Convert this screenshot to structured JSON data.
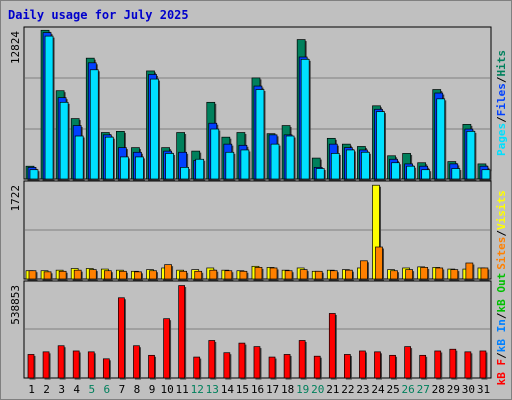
{
  "title": "Daily usage for July 2025",
  "colors": {
    "hits": "#00805c",
    "files": "#0040ff",
    "pages": "#00e0ff",
    "visits": "#ffff00",
    "sites": "#ff8000",
    "kbf": "#ff0000",
    "kbin": "#0080ff",
    "kbout": "#00c000",
    "weekend_day": "#00805c",
    "weekday": "#000000",
    "panel": "#c0c0c0",
    "grid": "#808080"
  },
  "days": [
    "1",
    "2",
    "3",
    "4",
    "5",
    "6",
    "7",
    "8",
    "9",
    "10",
    "11",
    "12",
    "13",
    "14",
    "15",
    "16",
    "17",
    "18",
    "19",
    "20",
    "21",
    "22",
    "23",
    "24",
    "25",
    "26",
    "27",
    "28",
    "29",
    "30",
    "31"
  ],
  "weekend_days": [
    "5",
    "6",
    "12",
    "13",
    "19",
    "20",
    "26",
    "27"
  ],
  "right_label": {
    "top": {
      "pages": "Pages",
      "files": "Files",
      "hits": "Hits",
      "sep": "/"
    },
    "mid": {
      "sites": "Sites",
      "visits": "Visits",
      "sep": "/"
    },
    "bot": {
      "kbf": "kB F",
      "kbin": "kB In",
      "kbout": "kB Out",
      "sep": "/"
    }
  },
  "chart_data": [
    {
      "type": "bar",
      "title": "Daily usage for July 2025",
      "ylabel": "12824",
      "ymax": 12824,
      "series": [
        {
          "name": "Hits",
          "values": [
            1100,
            12800,
            7600,
            5200,
            10400,
            4000,
            4100,
            2700,
            9300,
            2700,
            4000,
            2400,
            6600,
            3600,
            4000,
            8700,
            3900,
            4600,
            12000,
            1800,
            3500,
            3000,
            2800,
            6300,
            2000,
            2200,
            1400,
            7700,
            1500,
            4700,
            1300
          ]
        },
        {
          "name": "Files",
          "values": [
            1000,
            12600,
            7000,
            4600,
            10000,
            3800,
            2700,
            2300,
            9000,
            2400,
            2300,
            1600,
            4800,
            3000,
            2900,
            8000,
            3800,
            3800,
            10500,
            1000,
            3000,
            2700,
            2500,
            6000,
            1700,
            1300,
            1100,
            7400,
            1300,
            4300,
            1100
          ]
        },
        {
          "name": "Pages",
          "values": [
            800,
            12300,
            6600,
            3700,
            9400,
            3600,
            1900,
            1900,
            8600,
            2200,
            1000,
            1700,
            4300,
            2300,
            2500,
            7700,
            3000,
            3700,
            10300,
            900,
            2200,
            2500,
            2300,
            5800,
            1400,
            1100,
            800,
            6900,
            900,
            4100,
            800
          ]
        }
      ]
    },
    {
      "type": "bar",
      "ylabel": "1722",
      "ymax": 1722,
      "series": [
        {
          "name": "Visits",
          "values": [
            150,
            150,
            160,
            190,
            190,
            180,
            160,
            140,
            170,
            200,
            160,
            170,
            200,
            160,
            150,
            230,
            210,
            160,
            200,
            140,
            160,
            170,
            200,
            1700,
            170,
            200,
            220,
            210,
            180,
            180,
            200
          ]
        },
        {
          "name": "Sites",
          "values": [
            150,
            130,
            140,
            160,
            170,
            150,
            140,
            130,
            150,
            260,
            140,
            140,
            160,
            150,
            140,
            210,
            200,
            150,
            170,
            140,
            150,
            160,
            330,
            580,
            150,
            170,
            210,
            200,
            170,
            290,
            200
          ]
        }
      ]
    },
    {
      "type": "bar",
      "ylabel": "538853",
      "ymax": 538853,
      "series": [
        {
          "name": "kB F",
          "values": [
            135000,
            150000,
            185000,
            155000,
            150000,
            110000,
            460000,
            185000,
            130000,
            340000,
            530000,
            120000,
            215000,
            145000,
            200000,
            180000,
            120000,
            135000,
            215000,
            125000,
            370000,
            135000,
            155000,
            150000,
            130000,
            180000,
            130000,
            155000,
            165000,
            150000,
            155000
          ]
        }
      ]
    }
  ]
}
